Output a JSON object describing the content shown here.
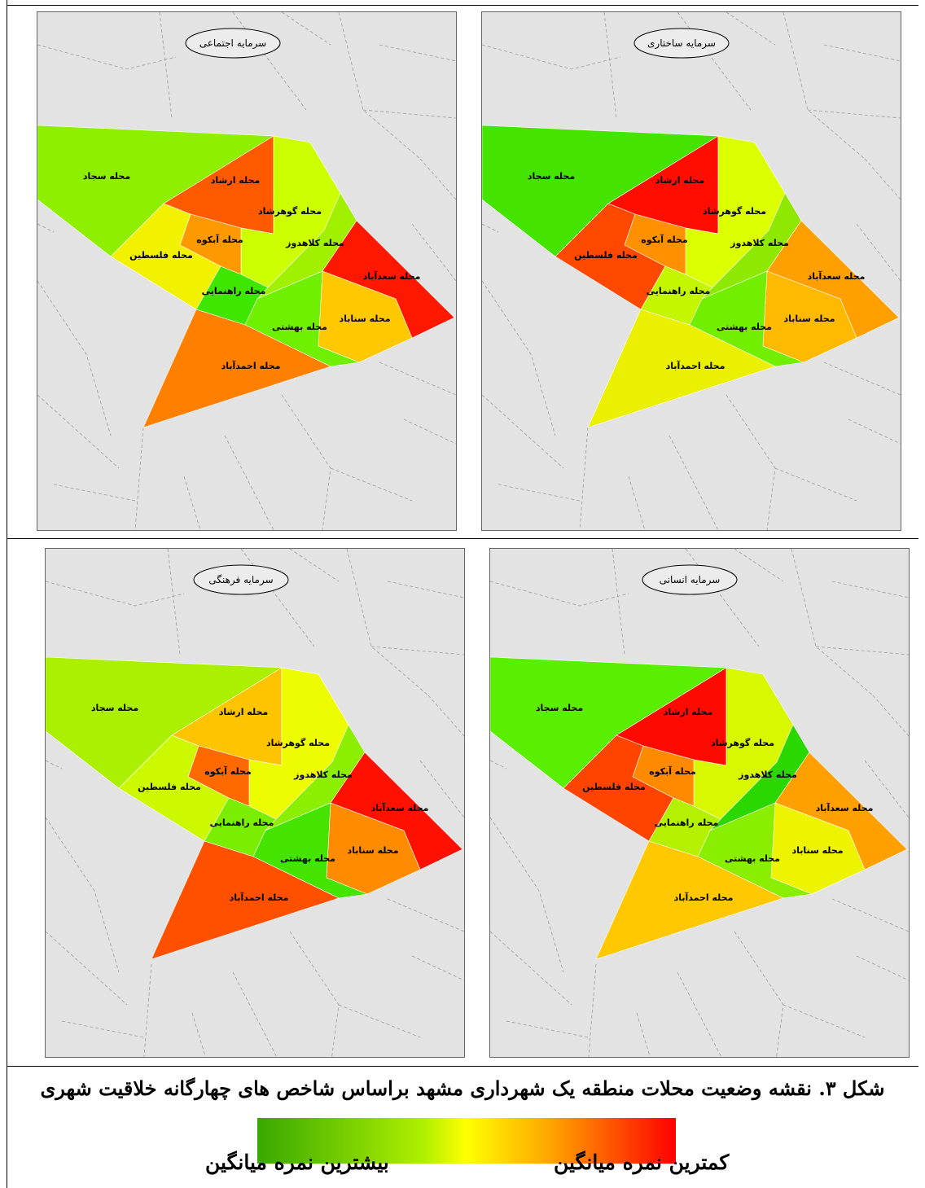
{
  "panels": [
    {
      "title": "سرمایه اجتماعی",
      "colors": {
        "sajjad": "#8ef000",
        "ershad": "#ff5a00",
        "gohar": "#ccff00",
        "abkooh": "#ff9900",
        "felestin": "#f2f200",
        "kolahdooz": "#a0f000",
        "saadabad": "#ff1800",
        "rahnamaei": "#3ee600",
        "sanabad": "#ffc800",
        "beheshti": "#6ef000",
        "ahmadabad": "#ff8000"
      }
    },
    {
      "title": "سرمایه ساختاری",
      "colors": {
        "sajjad": "#44e400",
        "ershad": "#ff0d00",
        "gohar": "#dcff00",
        "abkooh": "#ff9000",
        "felestin": "#ff4800",
        "kolahdooz": "#8ee800",
        "saadabad": "#ffa000",
        "rahnamaei": "#c4f600",
        "sanabad": "#ffba00",
        "beheshti": "#72ee00",
        "ahmadabad": "#eaf000"
      }
    },
    {
      "title": "سرمایه فرهنگی",
      "colors": {
        "sajjad": "#aaf000",
        "ershad": "#ffc400",
        "gohar": "#eefc00",
        "abkooh": "#ff6a00",
        "felestin": "#ccf800",
        "kolahdooz": "#8cee00",
        "saadabad": "#ff1000",
        "rahnamaei": "#7aee00",
        "sanabad": "#ff8c00",
        "beheshti": "#44e400",
        "ahmadabad": "#ff5000"
      }
    },
    {
      "title": "سرمایه انسانی",
      "colors": {
        "sajjad": "#5aee00",
        "ershad": "#ff0a00",
        "gohar": "#d8f800",
        "abkooh": "#ff8a00",
        "felestin": "#ff4400",
        "kolahdooz": "#2ad800",
        "saadabad": "#ffa000",
        "rahnamaei": "#b4f000",
        "sanabad": "#eef400",
        "beheshti": "#8aee00",
        "ahmadabad": "#ffc800"
      }
    }
  ],
  "labels": {
    "sajjad": "محله سجاد",
    "ershad": "محله ارشاد",
    "gohar": "محله گوهرشاد",
    "abkooh": "محله آبکوه",
    "felestin": "محله فلسطین",
    "kolahdooz": "محله کلاهدوز",
    "saadabad": "محله سعدآباد",
    "rahnamaei": "محله راهنمایی",
    "sanabad": "محله سناباد",
    "beheshti": "محله بهشتی",
    "ahmadabad": "محله احمدآباد"
  },
  "caption": "شکل ۳. نقشه وضعیت محلات منطقه یک شهرداری مشهد براساس شاخص های چهارگانه خلاقیت شهری",
  "legend": {
    "left_label": "بیشترین نمره میانگین",
    "right_label": "کمترین نمره میانگین",
    "colors": [
      "#38a800",
      "#b0f000",
      "#ffff00",
      "#ffa500",
      "#ff0000"
    ]
  }
}
